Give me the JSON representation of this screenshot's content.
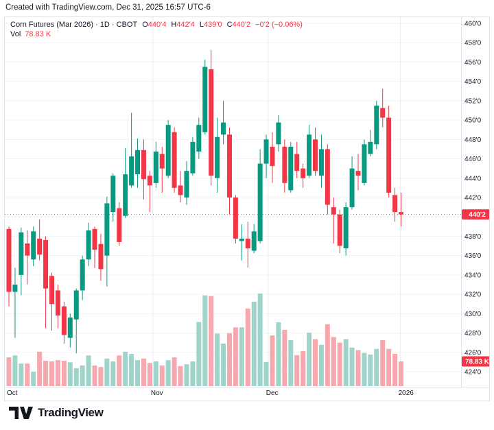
{
  "attribution": "Created with TradingView.com, Dec 31, 2025 16:57 UTC-6",
  "legend": {
    "symbol": "Corn Futures (Mar 2026) · 1D · CBOT",
    "open_label": "O",
    "open_value": "440'4",
    "high_label": "H",
    "high_value": "442'4",
    "low_label": "L",
    "low_value": "439'0",
    "close_label": "C",
    "close_value": "440'2",
    "change": "−0'2 (−0.06%)",
    "volume_label": "Vol",
    "volume_value": "78.83 K"
  },
  "price_axis": {
    "tick_labels": [
      "460'0",
      "458'0",
      "456'0",
      "454'0",
      "452'0",
      "450'0",
      "448'0",
      "446'0",
      "444'0",
      "442'0",
      "438'0",
      "436'0",
      "434'0",
      "432'0",
      "430'0",
      "428'0",
      "426'0",
      "424'0"
    ],
    "last_price_tag": "440'2",
    "volume_tag": "78.83 K",
    "hidden_tick": "440'0"
  },
  "time_axis": {
    "labels": [
      {
        "text": "Oct",
        "index": 0
      },
      {
        "text": "Nov",
        "index": 23.5
      },
      {
        "text": "Dec",
        "index": 42.3
      },
      {
        "text": "2026",
        "index": 63.9
      }
    ]
  },
  "colors": {
    "up": "#089981",
    "down": "#f23645",
    "volume_up": "#9fd4cb",
    "volume_down": "#f6a8ae",
    "grid_h": "#f1f3f8",
    "grid_v": "#e8ebf1",
    "axis_line": "#e0e3eb",
    "text": "#131722",
    "tag_bg": "#f23645",
    "tag_text": "#ffffff",
    "last_price_line": "#f23645"
  },
  "logo": {
    "text": "TradingView"
  },
  "chart_data": {
    "type": "candlestick",
    "title": "Corn Futures (Mar 2026)",
    "interval": "1D",
    "exchange": "CBOT",
    "legend_position": "top-left",
    "grid": true,
    "price_scale": {
      "min": 424,
      "max": 460,
      "tick_step": 2,
      "notation": "eighths"
    },
    "last_price": 440.25,
    "prev_close": 440.5,
    "change_text": "−0'2 (−0.06%)",
    "volume_scale_max_k": 296,
    "last_volume_k": 78.83,
    "x_tick_indices": {
      "Oct": 0,
      "Nov": 23.5,
      "Dec": 42.3,
      "2026": 63.9
    },
    "candles_format": [
      "open",
      "high",
      "low",
      "close",
      "volume_k"
    ],
    "candles": [
      [
        438.75,
        439,
        430.75,
        432.25,
        92
      ],
      [
        432.25,
        434.75,
        427.5,
        433,
        98
      ],
      [
        434,
        438.9,
        431.9,
        438.4,
        72
      ],
      [
        437.25,
        438.6,
        433,
        436,
        72
      ],
      [
        435.6,
        439,
        434.9,
        438.5,
        46
      ],
      [
        437.75,
        439.75,
        435.5,
        436.1,
        110
      ],
      [
        437.6,
        438,
        428.5,
        432.6,
        81
      ],
      [
        433.9,
        434.25,
        428.25,
        431,
        79
      ],
      [
        432.4,
        433,
        428.5,
        429.8,
        83
      ],
      [
        430.75,
        431.25,
        426.9,
        427.8,
        81
      ],
      [
        427.5,
        430,
        426.5,
        429.6,
        76
      ],
      [
        429.4,
        432.6,
        425.9,
        432.4,
        57
      ],
      [
        432.4,
        436,
        431.4,
        435.6,
        66
      ],
      [
        435.6,
        439.4,
        434.9,
        438.6,
        98
      ],
      [
        438.75,
        439,
        434.7,
        436.6,
        66
      ],
      [
        437.2,
        438.25,
        433.4,
        434.6,
        61
      ],
      [
        436,
        442.1,
        432.8,
        441.4,
        88
      ],
      [
        440.5,
        444.5,
        439.5,
        444.25,
        79
      ],
      [
        440.9,
        441.5,
        437,
        437.4,
        98
      ],
      [
        440.1,
        447.1,
        439.9,
        444.4,
        110
      ],
      [
        443.25,
        450.75,
        443,
        446.25,
        103
      ],
      [
        444.4,
        448.1,
        443,
        446.9,
        83
      ],
      [
        446.9,
        448,
        441.8,
        443.9,
        88
      ],
      [
        444.25,
        444.75,
        440.5,
        443.25,
        74
      ],
      [
        443.5,
        447.75,
        443,
        446.75,
        79
      ],
      [
        446.5,
        447.25,
        442.5,
        445,
        66
      ],
      [
        444.25,
        450,
        444,
        449.5,
        83
      ],
      [
        448.75,
        449.25,
        442.5,
        443,
        92
      ],
      [
        443.25,
        444.75,
        441.5,
        442.25,
        64
      ],
      [
        442,
        445.75,
        441.25,
        444.75,
        70
      ],
      [
        444.5,
        448.25,
        444.25,
        447.75,
        79
      ],
      [
        446.75,
        450.25,
        446,
        449.5,
        205
      ],
      [
        448.75,
        456.25,
        448.5,
        455.5,
        290
      ],
      [
        455.25,
        457.25,
        443.25,
        444.25,
        288
      ],
      [
        444,
        450.25,
        442.5,
        448.25,
        168
      ],
      [
        448.5,
        452,
        447.5,
        449.75,
        136
      ],
      [
        448.5,
        449.25,
        440.25,
        442,
        169
      ],
      [
        442,
        442.25,
        437.25,
        437.75,
        188
      ],
      [
        437.5,
        439.25,
        435.5,
        437.75,
        188
      ],
      [
        437.75,
        439.5,
        434.75,
        436.75,
        248
      ],
      [
        436.5,
        439.25,
        436.25,
        438.5,
        270
      ],
      [
        437.5,
        447,
        437.25,
        445.5,
        296
      ],
      [
        445.5,
        448.5,
        444,
        448,
        77
      ],
      [
        447.25,
        448.75,
        443.5,
        445.25,
        162
      ],
      [
        447.5,
        450.5,
        446.75,
        449.75,
        204
      ],
      [
        447.25,
        448,
        442.5,
        443.5,
        180
      ],
      [
        442.75,
        447.75,
        442.5,
        447.25,
        147
      ],
      [
        446.5,
        447.75,
        444,
        444.75,
        99
      ],
      [
        445,
        445.5,
        443,
        444,
        112
      ],
      [
        444.25,
        449.5,
        444,
        448.5,
        171
      ],
      [
        448,
        449.25,
        444.25,
        444.75,
        150
      ],
      [
        444.25,
        448.5,
        443,
        447,
        132
      ],
      [
        447,
        447.5,
        440.25,
        441.25,
        198
      ],
      [
        441,
        442,
        437.25,
        440.25,
        157
      ],
      [
        440.25,
        440.75,
        436.25,
        437,
        139
      ],
      [
        436.75,
        441.5,
        436,
        441,
        150
      ],
      [
        441,
        446.25,
        440.75,
        445,
        123
      ],
      [
        444.75,
        446.5,
        442.75,
        444.25,
        115
      ],
      [
        443.5,
        448,
        443.25,
        447.5,
        106
      ],
      [
        446.5,
        449,
        446.25,
        447.75,
        101
      ],
      [
        447.5,
        452,
        447,
        451.5,
        119
      ],
      [
        451.25,
        453.25,
        449.25,
        450.25,
        147
      ],
      [
        450.25,
        451.5,
        442,
        442.5,
        119
      ],
      [
        442.25,
        443,
        439.5,
        440.5,
        103
      ],
      [
        440.5,
        442.5,
        439,
        440.25,
        78.83
      ]
    ]
  }
}
